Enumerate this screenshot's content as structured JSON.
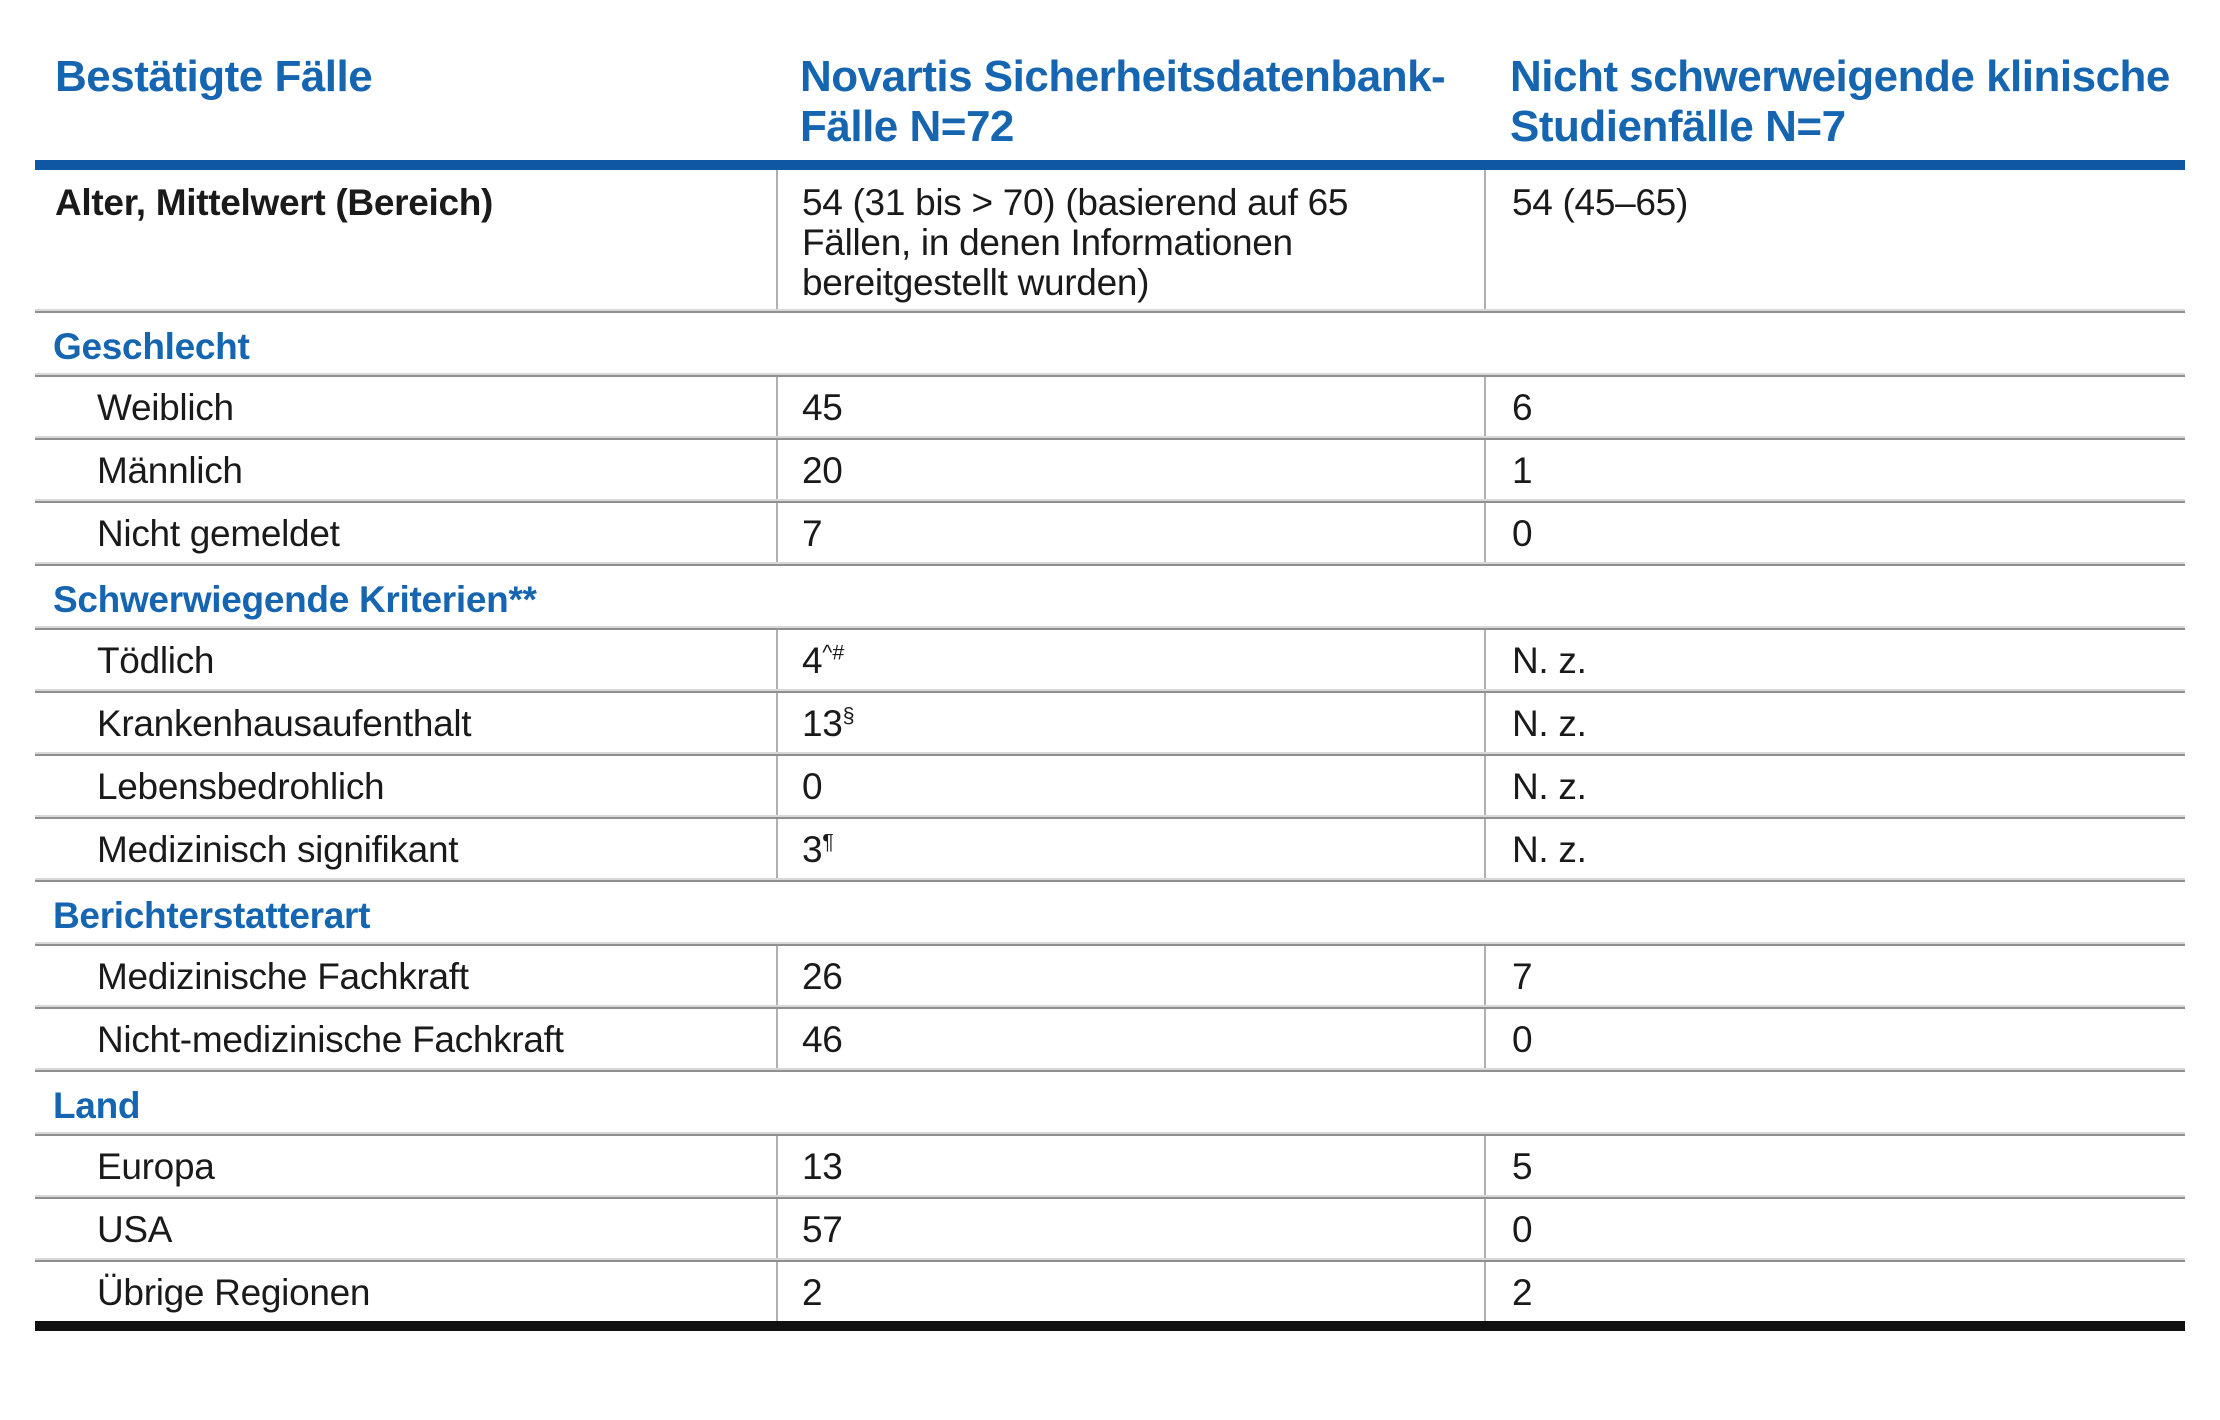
{
  "colors": {
    "heading_blue": "#1565b0",
    "rule_blue": "#0f57a2",
    "divider_gray_light": "#d8d8d8",
    "divider_gray_dark": "#8f8f8f",
    "column_line_gray": "#b0b0b0",
    "bottom_rule_black": "#101010",
    "body_text": "#1a1a1a"
  },
  "header": {
    "col1": "Bestätigte Fälle",
    "col2": "Novartis Sicherheitsdatenbank-Fälle N=72",
    "col2_lines": [
      "Novartis Sicherheitsdatenbank-",
      "Fälle N=72"
    ],
    "col3": "Nicht schwerweigende klinische Studienfälle N=7",
    "col3_lines": [
      "Nicht schwerweigende klinische",
      "Studienfälle N=7"
    ]
  },
  "age_row": {
    "label": "Alter, Mittelwert (Bereich)",
    "db": "54 (31 bis > 70) (basierend auf 65 Fällen, in denen Informationen bereitgestellt wurden)",
    "db_lines": [
      "54 (31 bis > 70) (basierend auf 65",
      "Fällen, in denen Informationen",
      "bereitgestellt wurden)"
    ],
    "study": "54 (45–65)"
  },
  "sections": [
    {
      "title": "Geschlecht",
      "rows": [
        {
          "label": "Weiblich",
          "db": "45",
          "db_sup": "",
          "study": "6"
        },
        {
          "label": "Männlich",
          "db": "20",
          "db_sup": "",
          "study": "1"
        },
        {
          "label": "Nicht gemeldet",
          "db": "7",
          "db_sup": "",
          "study": "0"
        }
      ]
    },
    {
      "title": "Schwerwiegende Kriterien**",
      "rows": [
        {
          "label": "Tödlich",
          "db": "4",
          "db_sup": "^#",
          "study": "N. z."
        },
        {
          "label": "Krankenhausaufenthalt",
          "db": "13",
          "db_sup": "§",
          "study": "N. z."
        },
        {
          "label": "Lebensbedrohlich",
          "db": "0",
          "db_sup": "",
          "study": "N. z."
        },
        {
          "label": "Medizinisch signifikant",
          "db": "3",
          "db_sup": "¶",
          "study": "N. z."
        }
      ]
    },
    {
      "title": "Berichterstatterart",
      "rows": [
        {
          "label": "Medizinische Fachkraft",
          "db": "26",
          "db_sup": "",
          "study": "7"
        },
        {
          "label": "Nicht-medizinische Fachkraft",
          "db": "46",
          "db_sup": "",
          "study": "0"
        }
      ]
    },
    {
      "title": "Land",
      "rows": [
        {
          "label": "Europa",
          "db": "13",
          "db_sup": "",
          "study": "5"
        },
        {
          "label": "USA",
          "db": "57",
          "db_sup": "",
          "study": "0"
        },
        {
          "label": "Übrige Regionen",
          "db": "2",
          "db_sup": "",
          "study": "2"
        }
      ]
    }
  ]
}
